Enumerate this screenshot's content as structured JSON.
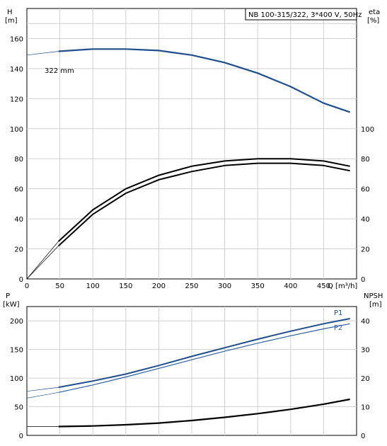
{
  "chart_data": [
    {
      "type": "line",
      "title": "NB 100-315/322, 3*400 V, 50Hz",
      "xlabel": "Q [m³/h]",
      "ylabel_left": [
        "H",
        "[m]"
      ],
      "ylabel_right": [
        "eta",
        "[%]"
      ],
      "xlim": [
        0,
        500
      ],
      "ylim_left": [
        0,
        180
      ],
      "ylim_right_visible": [
        0,
        100
      ],
      "x_ticks": [
        0,
        50,
        100,
        150,
        200,
        250,
        300,
        350,
        400,
        450
      ],
      "y_ticks_left": [
        0,
        20,
        40,
        60,
        80,
        100,
        120,
        140,
        160
      ],
      "y_ticks_right": [
        0,
        20,
        40,
        60,
        80,
        100
      ],
      "grid": true,
      "annotations": [
        {
          "text": "322 mm",
          "series": "head"
        }
      ],
      "series": [
        {
          "id": "head",
          "axis": "left",
          "color": "#1f4e8c",
          "x": [
            0,
            48,
            100,
            150,
            200,
            250,
            300,
            350,
            400,
            450,
            490
          ],
          "y": [
            149,
            151.5,
            153,
            153,
            152,
            149,
            144,
            137,
            128,
            117,
            111
          ],
          "dashed_from_origin": true
        },
        {
          "id": "efficiency-upper",
          "axis": "right",
          "color": "#000000",
          "x": [
            0,
            48,
            100,
            150,
            200,
            250,
            300,
            350,
            400,
            450,
            490
          ],
          "y": [
            0,
            25,
            46,
            60,
            69,
            75,
            78.5,
            80,
            80,
            78.5,
            75
          ]
        },
        {
          "id": "efficiency-lower",
          "axis": "right",
          "color": "#000000",
          "x": [
            0,
            48,
            100,
            150,
            200,
            250,
            300,
            350,
            400,
            450,
            490
          ],
          "y": [
            0,
            22,
            43,
            57,
            66,
            71.5,
            75.5,
            77,
            77,
            75.5,
            72
          ]
        }
      ]
    },
    {
      "type": "line",
      "ylabel_left": [
        "P",
        "[kW]"
      ],
      "ylabel_right": [
        "NPSH",
        "[m]"
      ],
      "xlim": [
        0,
        500
      ],
      "ylim_left": [
        0,
        225
      ],
      "ylim_right": [
        0,
        45
      ],
      "x_ticks": [
        0,
        50,
        100,
        150,
        200,
        250,
        300,
        350,
        400,
        450
      ],
      "y_ticks_left": [
        0,
        50,
        100,
        150,
        200
      ],
      "y_ticks_right": [
        0,
        10,
        20,
        30,
        40
      ],
      "grid": true,
      "series": [
        {
          "name": "P1",
          "axis": "left",
          "color": "#1f4e8c",
          "x": [
            0,
            48,
            100,
            150,
            200,
            250,
            300,
            350,
            400,
            450,
            490
          ],
          "y": [
            77,
            84,
            95,
            107,
            122,
            138,
            153,
            168,
            182,
            195,
            204
          ]
        },
        {
          "name": "P2",
          "axis": "left",
          "color": "#2f62a5",
          "x": [
            0,
            48,
            100,
            150,
            200,
            250,
            300,
            350,
            400,
            450,
            490
          ],
          "y": [
            65,
            75,
            88,
            102,
            117,
            132,
            147,
            161,
            174,
            186,
            195
          ]
        },
        {
          "id": "npsh",
          "axis": "right",
          "color": "#000000",
          "x": [
            0,
            48,
            100,
            150,
            200,
            250,
            300,
            350,
            400,
            450,
            490
          ],
          "y": [
            3.1,
            3.1,
            3.3,
            3.7,
            4.3,
            5.2,
            6.3,
            7.6,
            9.1,
            10.9,
            12.6
          ]
        }
      ]
    }
  ]
}
